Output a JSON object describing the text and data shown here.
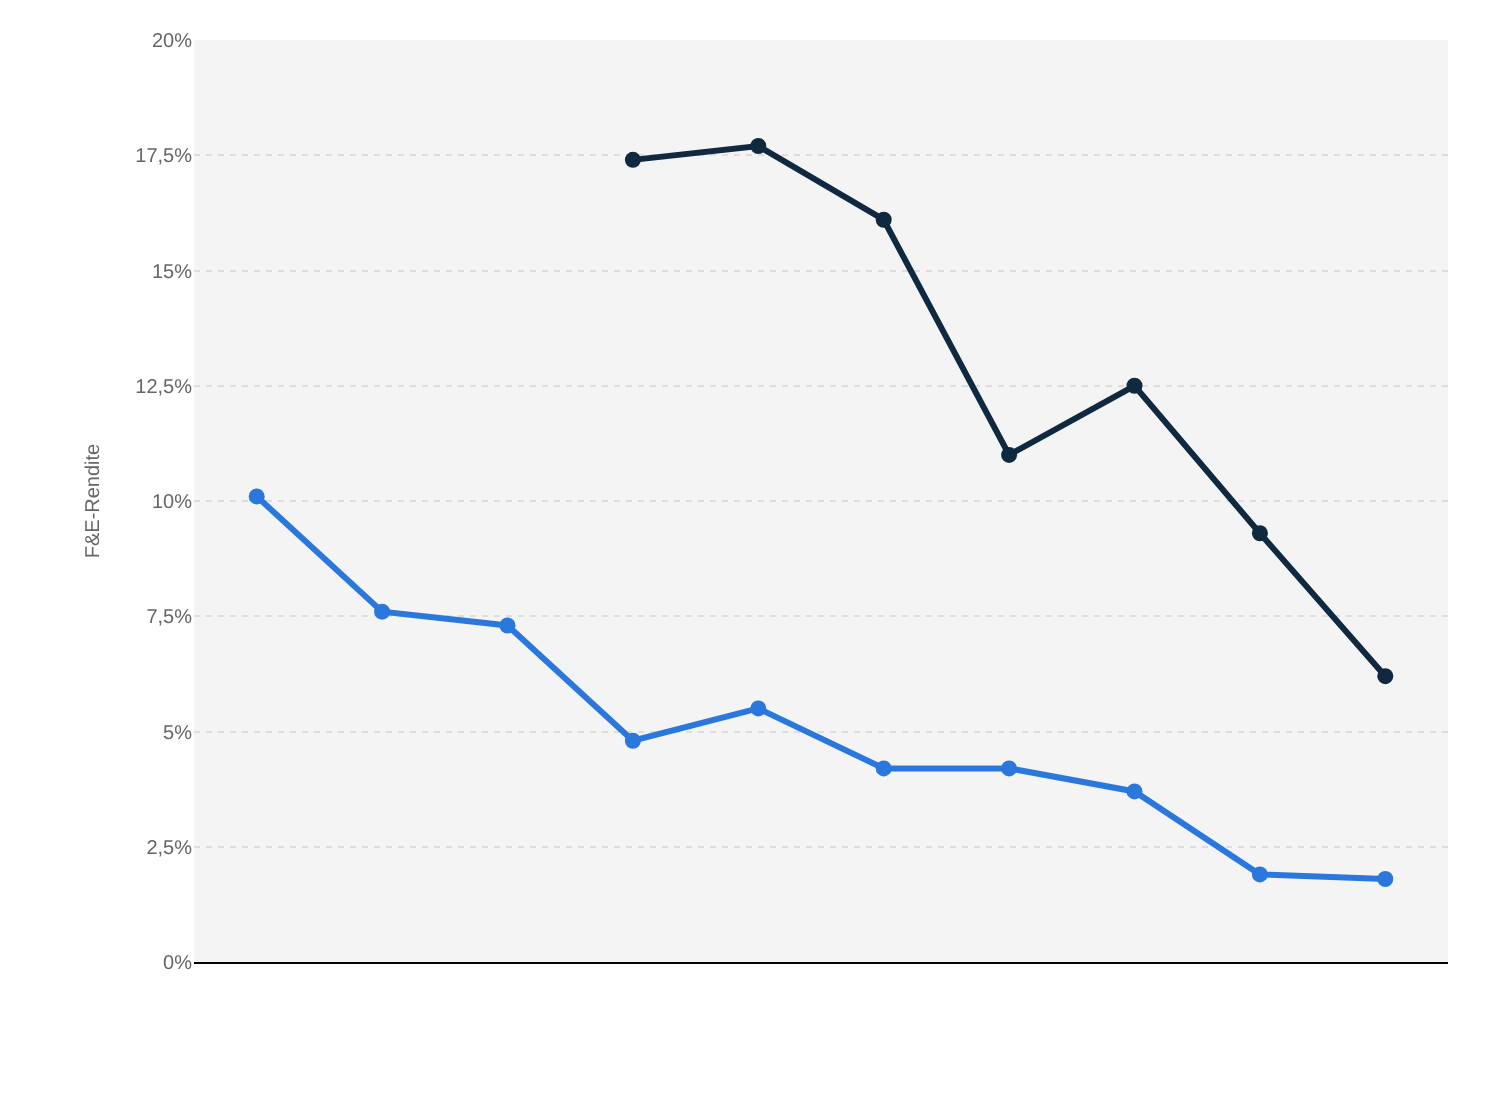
{
  "chart_data": {
    "type": "line",
    "ylabel": "F&E-Rendite",
    "categories": [
      null,
      null,
      null,
      null,
      null,
      null,
      null,
      null,
      null,
      null
    ],
    "series": [
      {
        "color": "#2a77dd",
        "values": [
          10.1,
          7.6,
          7.3,
          4.8,
          5.5,
          4.2,
          4.2,
          3.7,
          1.9,
          1.8
        ]
      },
      {
        "color": "#0f2941",
        "values": [
          null,
          null,
          null,
          17.4,
          17.7,
          16.1,
          11.0,
          12.5,
          9.3,
          6.2
        ]
      }
    ],
    "ylim": [
      0,
      20
    ],
    "yticks": [
      {
        "value": 0,
        "label": "0%"
      },
      {
        "value": 2.5,
        "label": "2,5%"
      },
      {
        "value": 5,
        "label": "5%"
      },
      {
        "value": 7.5,
        "label": "7,5%"
      },
      {
        "value": 10,
        "label": "10%"
      },
      {
        "value": 12.5,
        "label": "12,5%"
      },
      {
        "value": 15,
        "label": "15%"
      },
      {
        "value": 17.5,
        "label": "17,5%"
      },
      {
        "value": 20,
        "label": "20%"
      }
    ],
    "grid": "y",
    "marker": "circle",
    "line_style": "solid",
    "tick_labels": "y"
  }
}
